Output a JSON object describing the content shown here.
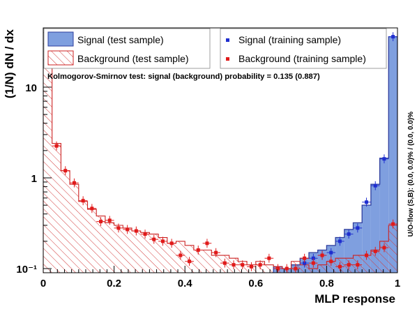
{
  "chart_data": {
    "type": "histogram",
    "title": "",
    "xlabel": "MLP response",
    "ylabel": "(1/N) dN / dx",
    "xlim": [
      0,
      1
    ],
    "ylim": [
      0.09,
      45
    ],
    "yscale": "log",
    "x_ticks": [
      "0",
      "0.2",
      "0.4",
      "0.6",
      "0.8",
      "1"
    ],
    "y_ticks": [
      "10⁻¹",
      "1",
      "10"
    ],
    "grid": false,
    "legend_position": "top",
    "annotation": "Kolmogorov-Smirnov test: signal (background) probability = 0.135 (0.887)",
    "side_note": "U/O-flow (S,B): (0.0, 0.0)% / (0.0, 0.0)%",
    "bins": 40,
    "bin_width": 0.025,
    "series": [
      {
        "name": "Signal (test sample)",
        "kind": "filled-histogram",
        "color": "#7f9fdf",
        "values": [
          0,
          0,
          0,
          0,
          0,
          0,
          0,
          0,
          0,
          0,
          0,
          0,
          0,
          0,
          0,
          0,
          0,
          0,
          0,
          0,
          0,
          0,
          0,
          0,
          0,
          0,
          0.105,
          0.1,
          0.11,
          0.13,
          0.15,
          0.16,
          0.18,
          0.22,
          0.27,
          0.32,
          0.5,
          0.85,
          1.65,
          36
        ]
      },
      {
        "name": "Background (test sample)",
        "kind": "hatched-histogram",
        "color": "#cc2222",
        "values": [
          30,
          2.4,
          1.2,
          0.85,
          0.55,
          0.45,
          0.38,
          0.32,
          0.3,
          0.28,
          0.26,
          0.25,
          0.24,
          0.22,
          0.19,
          0.2,
          0.18,
          0.16,
          0.16,
          0.14,
          0.14,
          0.13,
          0.12,
          0.11,
          0.12,
          0.11,
          0.105,
          0.1,
          0.12,
          0.11,
          0.1,
          0.11,
          0.12,
          0.13,
          0.13,
          0.14,
          0.14,
          0.16,
          0.2,
          0.3
        ]
      },
      {
        "name": "Signal (training sample)",
        "kind": "points",
        "color": "#1f2ecf",
        "x": [
          0.7375,
          0.7625,
          0.7875,
          0.8125,
          0.8375,
          0.8625,
          0.8875,
          0.9125,
          0.9375,
          0.9625,
          0.9875
        ],
        "values": [
          0.115,
          0.13,
          0.14,
          0.15,
          0.2,
          0.24,
          0.28,
          0.54,
          0.82,
          1.62,
          36
        ]
      },
      {
        "name": "Background (training sample)",
        "kind": "points",
        "color": "#e01a1a",
        "x": [
          0.0125,
          0.0375,
          0.0625,
          0.0875,
          0.1125,
          0.1375,
          0.1625,
          0.1875,
          0.2125,
          0.2375,
          0.2625,
          0.2875,
          0.3125,
          0.3375,
          0.3625,
          0.3875,
          0.4125,
          0.4375,
          0.4625,
          0.4875,
          0.5125,
          0.5375,
          0.5625,
          0.5875,
          0.6125,
          0.6375,
          0.6625,
          0.6875,
          0.7125,
          0.7375,
          0.7625,
          0.7875,
          0.8125,
          0.8375,
          0.8625,
          0.8875,
          0.9125,
          0.9375,
          0.9625,
          0.9875
        ],
        "values": [
          30,
          2.25,
          1.2,
          0.88,
          0.56,
          0.46,
          0.33,
          0.34,
          0.28,
          0.27,
          0.26,
          0.24,
          0.21,
          0.2,
          0.19,
          0.14,
          0.12,
          0.16,
          0.19,
          0.15,
          0.115,
          0.11,
          0.11,
          0.105,
          0.11,
          0.13,
          0.1,
          0.1,
          0.1,
          0.13,
          0.115,
          0.14,
          0.12,
          0.105,
          0.11,
          0.11,
          0.14,
          0.155,
          0.17,
          0.31
        ]
      }
    ]
  }
}
